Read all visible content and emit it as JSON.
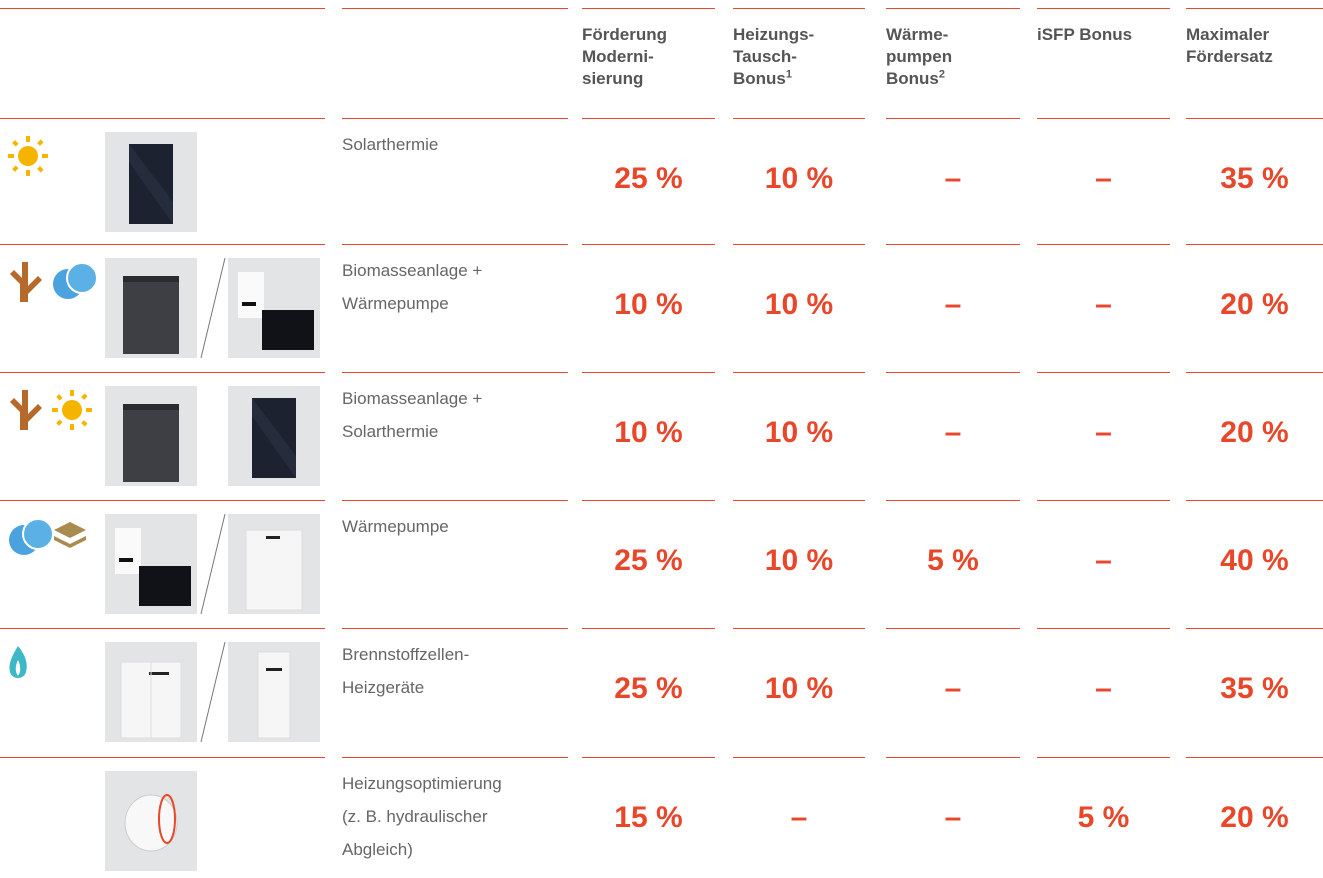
{
  "table": {
    "headers": [
      {
        "lines": [
          "Förderung",
          "Moderni-",
          "sierung"
        ]
      },
      {
        "lines": [
          "Heizungs-",
          "Tausch-",
          "Bonus"
        ],
        "sup": "1"
      },
      {
        "lines": [
          "Wärme-",
          "pumpen",
          "Bonus"
        ],
        "sup": "2"
      },
      {
        "lines": [
          "iSFP Bonus"
        ]
      },
      {
        "lines": [
          "Maximaler",
          "Fördersatz"
        ]
      }
    ],
    "rows": [
      {
        "label": [
          "Solarthermie"
        ],
        "values": [
          "25 %",
          "10 %",
          "–",
          "–",
          "35 %"
        ]
      },
      {
        "label": [
          "Biomasseanlage +",
          "Wärmepumpe"
        ],
        "values": [
          "10 %",
          "10 %",
          "–",
          "–",
          "20 %"
        ]
      },
      {
        "label": [
          "Biomasseanlage +",
          "Solarthermie"
        ],
        "values": [
          "10 %",
          "10 %",
          "–",
          "–",
          "20 %"
        ]
      },
      {
        "label": [
          "Wärmepumpe"
        ],
        "values": [
          "25 %",
          "10 %",
          "5 %",
          "–",
          "40 %"
        ]
      },
      {
        "label": [
          "Brennstoffzellen-",
          "Heizgeräte"
        ],
        "values": [
          "25 %",
          "10 %",
          "–",
          "–",
          "35 %"
        ]
      },
      {
        "label": [
          "Heizungsoptimierung",
          "(z. B. hydraulischer",
          "Abgleich)"
        ],
        "values": [
          "15 %",
          "–",
          "–",
          "5 %",
          "20 %"
        ]
      }
    ]
  }
}
